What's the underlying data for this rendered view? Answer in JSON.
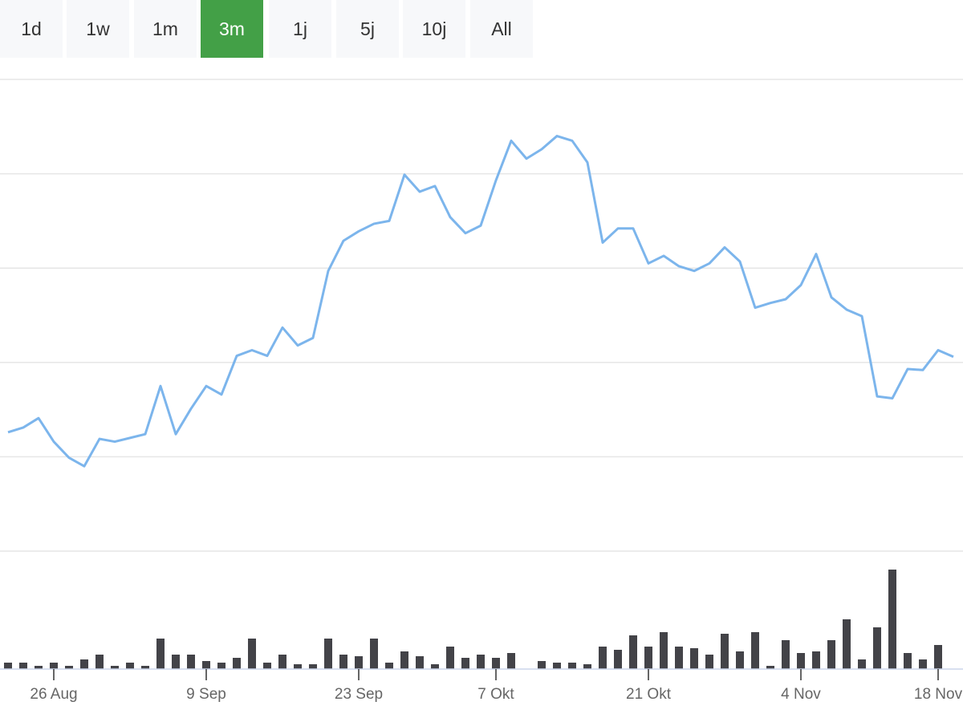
{
  "buttons": [
    {
      "label": "1d",
      "active": false
    },
    {
      "label": "1w",
      "active": false
    },
    {
      "label": "1m",
      "active": false
    },
    {
      "label": "3m",
      "active": true
    },
    {
      "label": "1j",
      "active": false
    },
    {
      "label": "5j",
      "active": false
    },
    {
      "label": "10j",
      "active": false
    },
    {
      "label": "All",
      "active": false
    }
  ],
  "chart_data": [
    {
      "type": "line",
      "color": "#7cb5ec",
      "grid": true,
      "categories": [
        null,
        null,
        null,
        "26 Aug",
        null,
        null,
        null,
        null,
        null,
        null,
        null,
        null,
        null,
        "9 Sep",
        null,
        null,
        null,
        null,
        null,
        null,
        null,
        null,
        null,
        "23 Sep",
        null,
        null,
        null,
        null,
        null,
        null,
        null,
        null,
        "7 Okt",
        null,
        null,
        null,
        null,
        null,
        null,
        null,
        null,
        null,
        "21 Okt",
        null,
        null,
        null,
        null,
        null,
        null,
        null,
        null,
        null,
        "4 Nov",
        null,
        null,
        null,
        null,
        null,
        null,
        null,
        null,
        "18 Nov",
        null
      ],
      "values": [
        1.26,
        1.31,
        1.41,
        1.16,
        0.99,
        0.9,
        1.19,
        1.16,
        1.2,
        1.24,
        1.75,
        1.24,
        1.51,
        1.75,
        1.66,
        2.07,
        2.13,
        2.07,
        2.37,
        2.18,
        2.26,
        2.97,
        3.29,
        3.39,
        3.47,
        3.5,
        3.99,
        3.81,
        3.87,
        3.54,
        3.37,
        3.45,
        3.93,
        4.35,
        4.16,
        4.26,
        4.4,
        4.35,
        4.12,
        3.27,
        3.42,
        3.42,
        3.05,
        3.13,
        3.02,
        2.97,
        3.05,
        3.22,
        3.07,
        2.58,
        2.63,
        2.67,
        2.82,
        3.15,
        2.69,
        2.56,
        2.49,
        1.64,
        1.62,
        1.93,
        1.92,
        2.13,
        2.06
      ],
      "ylim": [
        0,
        5
      ],
      "yticks": [
        0,
        1,
        2,
        3,
        4,
        5
      ]
    },
    {
      "type": "bar",
      "color": "#434348",
      "values": [
        8,
        8,
        4,
        8,
        4,
        12,
        18,
        4,
        8,
        4,
        38,
        18,
        18,
        10,
        8,
        14,
        38,
        8,
        18,
        6,
        6,
        38,
        18,
        16,
        38,
        8,
        22,
        16,
        6,
        28,
        14,
        18,
        14,
        20,
        0,
        10,
        8,
        8,
        6,
        28,
        24,
        42,
        28,
        46,
        28,
        26,
        18,
        44,
        22,
        46,
        4,
        36,
        20,
        22,
        36,
        62,
        12,
        52,
        124,
        20,
        12,
        30,
        0
      ],
      "ylim": [
        0,
        147
      ]
    }
  ]
}
